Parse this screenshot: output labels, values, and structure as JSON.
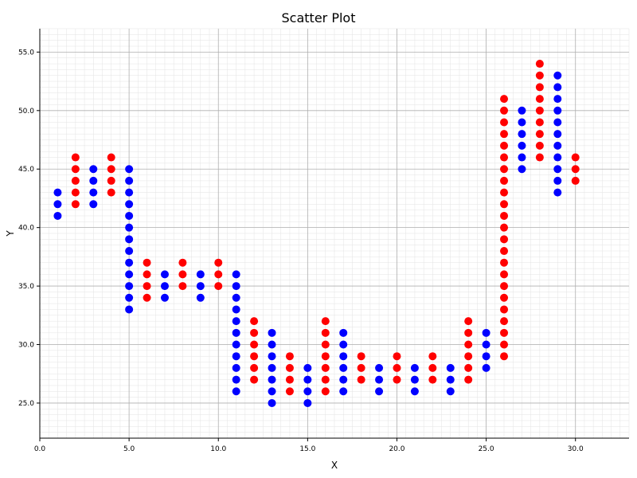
{
  "chart_data": {
    "type": "scatter",
    "title": "Scatter Plot",
    "xlabel": "X",
    "ylabel": "Y",
    "xlim": [
      0,
      33
    ],
    "ylim": [
      22,
      57
    ],
    "xticks": [
      0.0,
      5.0,
      10.0,
      15.0,
      20.0,
      25.0,
      30.0
    ],
    "xtick_labels": [
      "0.0",
      "5.0",
      "10.0",
      "15.0",
      "20.0",
      "25.0",
      "30.0"
    ],
    "yticks": [
      25.0,
      30.0,
      35.0,
      40.0,
      45.0,
      50.0,
      55.0
    ],
    "ytick_labels": [
      "25.0",
      "30.0",
      "35.0",
      "40.0",
      "45.0",
      "50.0",
      "55.0"
    ],
    "grid": true,
    "series": [
      {
        "color": "#0000ff",
        "points": [
          [
            1,
            41
          ],
          [
            1,
            42
          ],
          [
            1,
            43
          ],
          [
            3,
            42
          ],
          [
            3,
            43
          ],
          [
            3,
            44
          ],
          [
            3,
            45
          ],
          [
            5,
            33
          ],
          [
            5,
            34
          ],
          [
            5,
            35
          ],
          [
            5,
            36
          ],
          [
            5,
            37
          ],
          [
            5,
            38
          ],
          [
            5,
            39
          ],
          [
            5,
            40
          ],
          [
            5,
            41
          ],
          [
            5,
            42
          ],
          [
            5,
            43
          ],
          [
            5,
            44
          ],
          [
            5,
            45
          ],
          [
            7,
            34
          ],
          [
            7,
            35
          ],
          [
            7,
            36
          ],
          [
            9,
            34
          ],
          [
            9,
            35
          ],
          [
            9,
            36
          ],
          [
            11,
            26
          ],
          [
            11,
            27
          ],
          [
            11,
            28
          ],
          [
            11,
            29
          ],
          [
            11,
            30
          ],
          [
            11,
            31
          ],
          [
            11,
            32
          ],
          [
            11,
            33
          ],
          [
            11,
            34
          ],
          [
            11,
            35
          ],
          [
            11,
            36
          ],
          [
            13,
            25
          ],
          [
            13,
            26
          ],
          [
            13,
            27
          ],
          [
            13,
            28
          ],
          [
            13,
            29
          ],
          [
            13,
            30
          ],
          [
            13,
            31
          ],
          [
            15,
            25
          ],
          [
            15,
            26
          ],
          [
            15,
            27
          ],
          [
            15,
            28
          ],
          [
            17,
            26
          ],
          [
            17,
            27
          ],
          [
            17,
            28
          ],
          [
            17,
            29
          ],
          [
            17,
            30
          ],
          [
            17,
            31
          ],
          [
            19,
            26
          ],
          [
            19,
            27
          ],
          [
            19,
            28
          ],
          [
            21,
            26
          ],
          [
            21,
            27
          ],
          [
            21,
            28
          ],
          [
            23,
            26
          ],
          [
            23,
            27
          ],
          [
            23,
            28
          ],
          [
            25,
            28
          ],
          [
            25,
            29
          ],
          [
            25,
            30
          ],
          [
            25,
            31
          ],
          [
            27,
            45
          ],
          [
            27,
            46
          ],
          [
            27,
            47
          ],
          [
            27,
            48
          ],
          [
            27,
            49
          ],
          [
            27,
            50
          ],
          [
            29,
            43
          ],
          [
            29,
            44
          ],
          [
            29,
            45
          ],
          [
            29,
            46
          ],
          [
            29,
            47
          ],
          [
            29,
            48
          ],
          [
            29,
            49
          ],
          [
            29,
            50
          ],
          [
            29,
            51
          ],
          [
            29,
            52
          ],
          [
            29,
            53
          ]
        ]
      },
      {
        "color": "#ff0000",
        "points": [
          [
            2,
            42
          ],
          [
            2,
            43
          ],
          [
            2,
            44
          ],
          [
            2,
            45
          ],
          [
            2,
            46
          ],
          [
            4,
            43
          ],
          [
            4,
            44
          ],
          [
            4,
            45
          ],
          [
            4,
            46
          ],
          [
            6,
            34
          ],
          [
            6,
            35
          ],
          [
            6,
            36
          ],
          [
            6,
            37
          ],
          [
            8,
            35
          ],
          [
            8,
            36
          ],
          [
            8,
            37
          ],
          [
            10,
            35
          ],
          [
            10,
            36
          ],
          [
            10,
            37
          ],
          [
            12,
            27
          ],
          [
            12,
            28
          ],
          [
            12,
            29
          ],
          [
            12,
            30
          ],
          [
            12,
            31
          ],
          [
            12,
            32
          ],
          [
            14,
            26
          ],
          [
            14,
            27
          ],
          [
            14,
            28
          ],
          [
            14,
            29
          ],
          [
            16,
            26
          ],
          [
            16,
            27
          ],
          [
            16,
            28
          ],
          [
            16,
            29
          ],
          [
            16,
            30
          ],
          [
            16,
            31
          ],
          [
            16,
            32
          ],
          [
            18,
            27
          ],
          [
            18,
            28
          ],
          [
            18,
            29
          ],
          [
            20,
            27
          ],
          [
            20,
            28
          ],
          [
            20,
            29
          ],
          [
            22,
            27
          ],
          [
            22,
            28
          ],
          [
            22,
            29
          ],
          [
            24,
            27
          ],
          [
            24,
            28
          ],
          [
            24,
            29
          ],
          [
            24,
            30
          ],
          [
            24,
            31
          ],
          [
            24,
            32
          ],
          [
            26,
            29
          ],
          [
            26,
            30
          ],
          [
            26,
            31
          ],
          [
            26,
            32
          ],
          [
            26,
            33
          ],
          [
            26,
            34
          ],
          [
            26,
            35
          ],
          [
            26,
            36
          ],
          [
            26,
            37
          ],
          [
            26,
            38
          ],
          [
            26,
            39
          ],
          [
            26,
            40
          ],
          [
            26,
            41
          ],
          [
            26,
            42
          ],
          [
            26,
            43
          ],
          [
            26,
            44
          ],
          [
            26,
            45
          ],
          [
            26,
            46
          ],
          [
            26,
            47
          ],
          [
            26,
            48
          ],
          [
            26,
            49
          ],
          [
            26,
            50
          ],
          [
            26,
            51
          ],
          [
            28,
            46
          ],
          [
            28,
            47
          ],
          [
            28,
            48
          ],
          [
            28,
            49
          ],
          [
            28,
            50
          ],
          [
            28,
            51
          ],
          [
            28,
            52
          ],
          [
            28,
            53
          ],
          [
            28,
            54
          ],
          [
            30,
            44
          ],
          [
            30,
            45
          ],
          [
            30,
            46
          ]
        ]
      }
    ]
  }
}
